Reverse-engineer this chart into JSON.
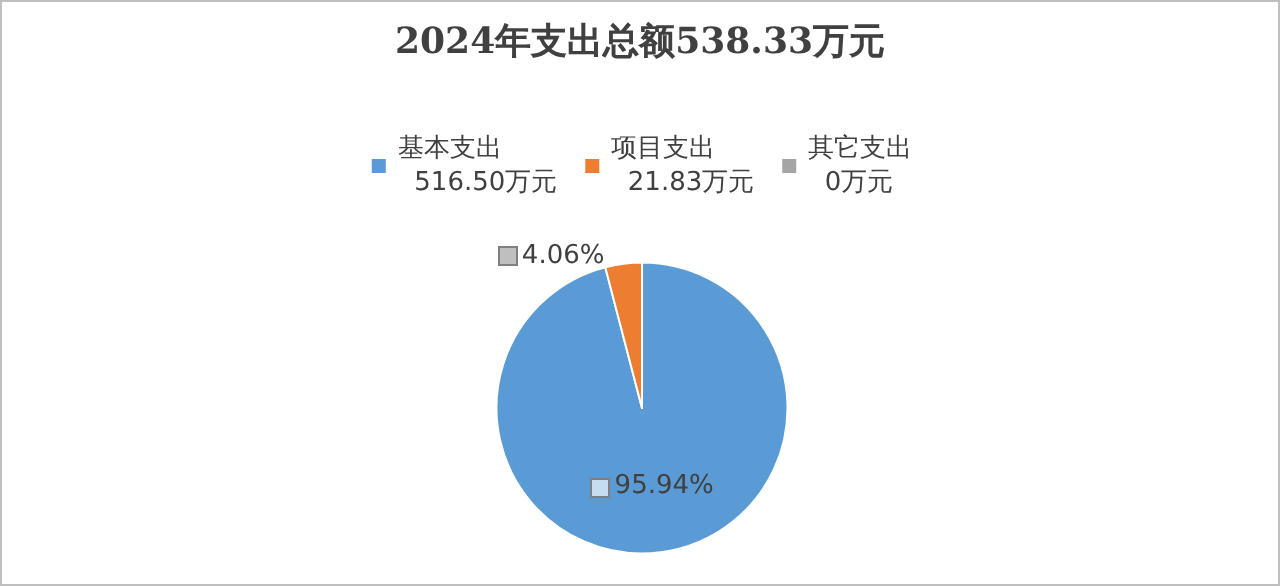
{
  "chart_data": {
    "type": "pie",
    "title": "2024年支出总额538.33万元",
    "categories": [
      "基本支出",
      "项目支出",
      "其它支出"
    ],
    "values": [
      95.94,
      4.06,
      0
    ],
    "colors": [
      "#5b9bd5",
      "#ed7d31",
      "#a5a5a5"
    ],
    "value_labels": [
      "95.94%",
      "4.06%",
      null
    ],
    "annotations": [
      "516.50万元",
      "21.83万元",
      "0万元"
    ],
    "legend": "top"
  }
}
